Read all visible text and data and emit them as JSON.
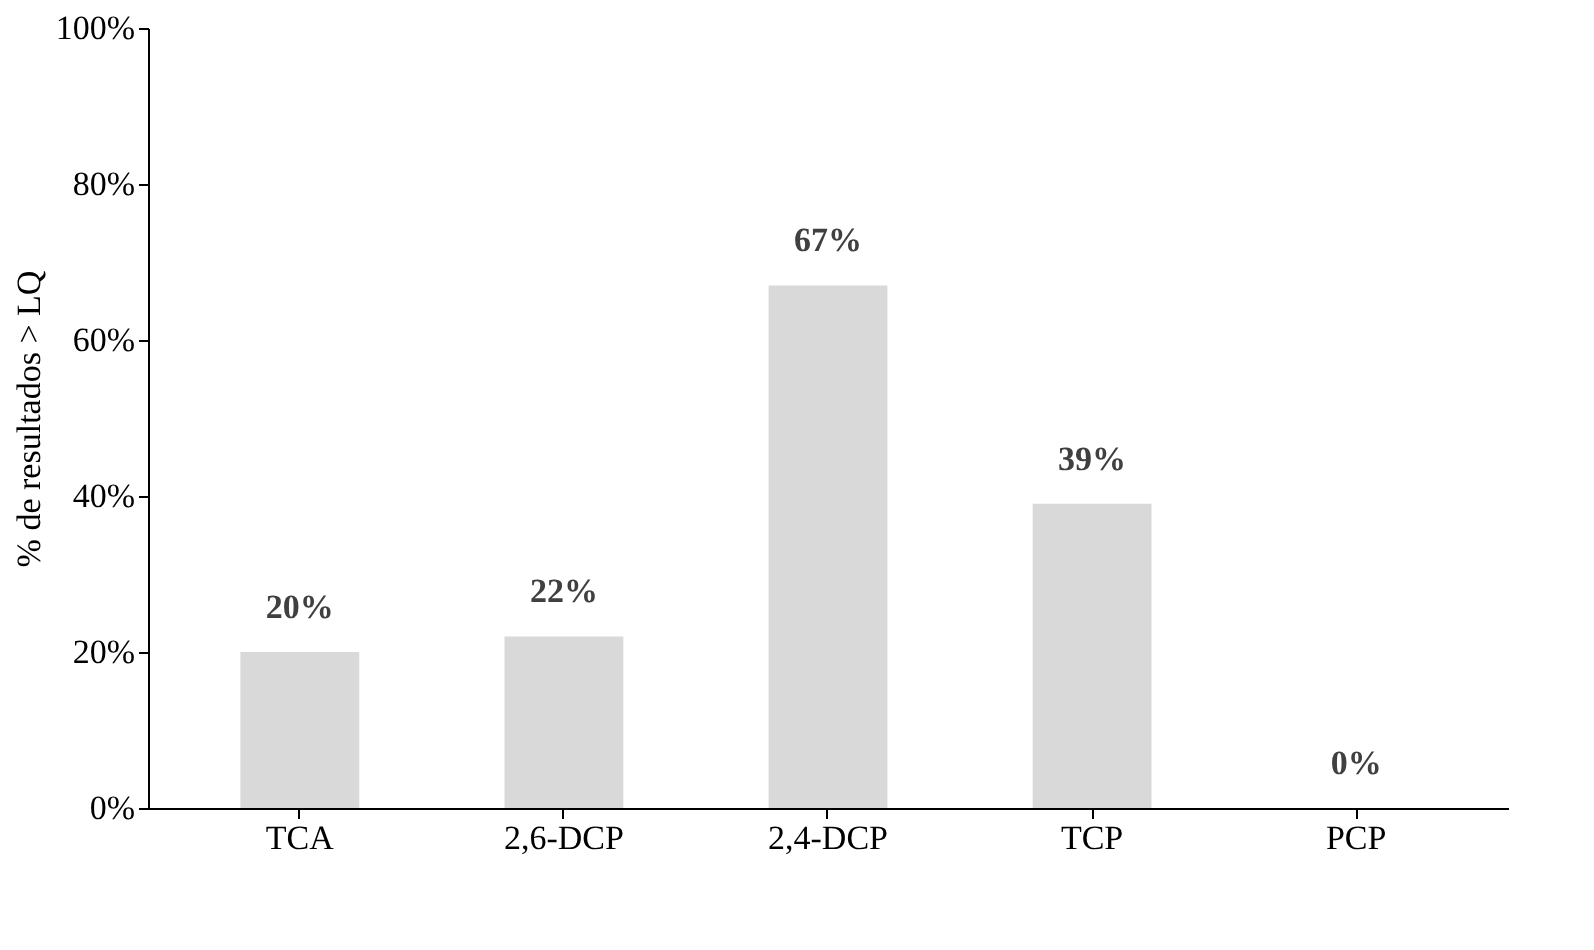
{
  "chart_data": {
    "type": "bar",
    "ylabel": "% de resultados > LQ",
    "categories": [
      "TCA",
      "2,6-DCP",
      "2,4-DCP",
      "TCP",
      "PCP"
    ],
    "values": [
      20,
      22,
      67,
      39,
      0
    ],
    "value_labels": [
      "20%",
      "22%",
      "67%",
      "39%",
      "0%"
    ],
    "color": "#d9d9d9",
    "ylim": [
      0,
      100
    ],
    "yticks": [
      {
        "value": 0,
        "label": "0%"
      },
      {
        "value": 20,
        "label": "20%"
      },
      {
        "value": 40,
        "label": "40%"
      },
      {
        "value": 60,
        "label": "60%"
      },
      {
        "value": 80,
        "label": "80%"
      },
      {
        "value": 100,
        "label": "100%"
      }
    ],
    "grid": false
  }
}
